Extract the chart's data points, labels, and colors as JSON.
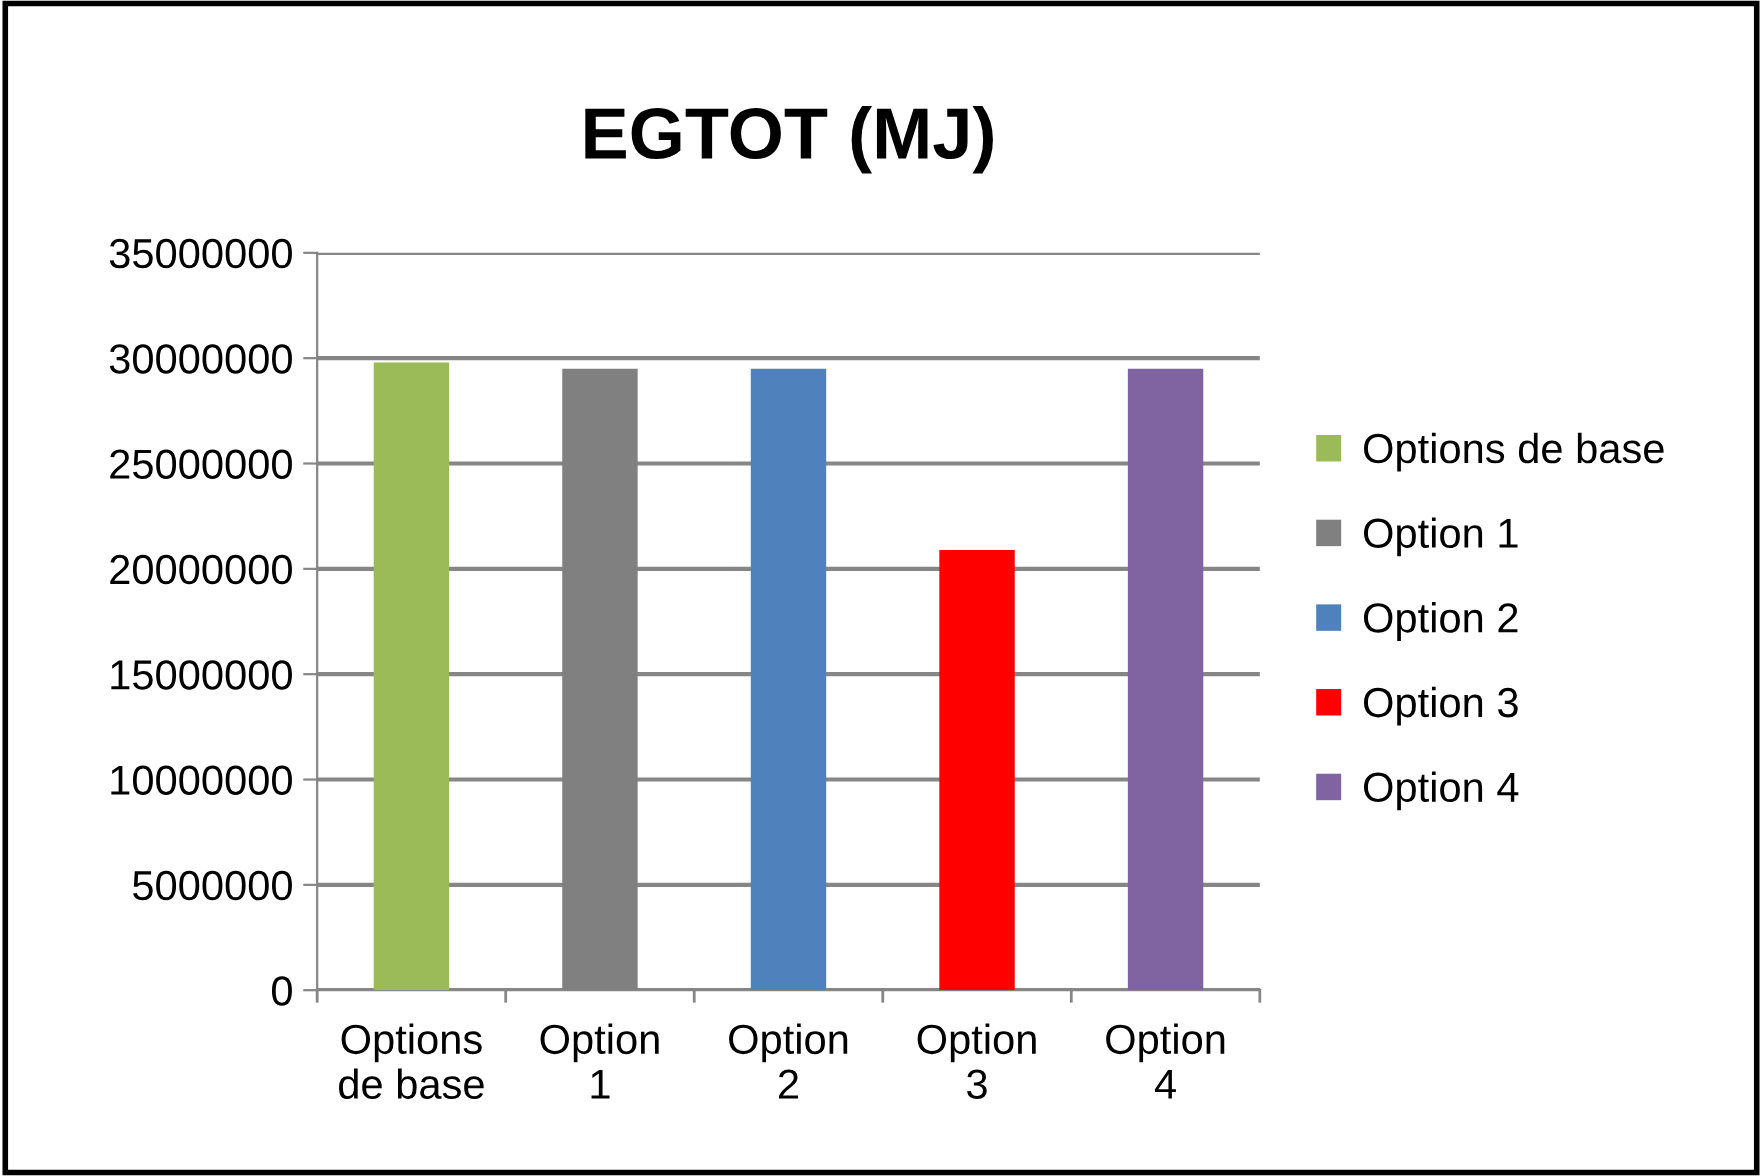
{
  "chart_data": {
    "type": "bar",
    "title": "EGTOT (MJ)",
    "categories": [
      "Options de base",
      "Option 1",
      "Option 2",
      "Option 3",
      "Option 4"
    ],
    "series": [
      {
        "name": "Options de base",
        "color": "#9bbb59",
        "values": [
          29800000,
          null,
          null,
          null,
          null
        ]
      },
      {
        "name": "Option 1",
        "color": "#808080",
        "values": [
          null,
          29500000,
          null,
          null,
          null
        ]
      },
      {
        "name": "Option 2",
        "color": "#4f81bd",
        "values": [
          null,
          null,
          29500000,
          null,
          null
        ]
      },
      {
        "name": "Option 3",
        "color": "#ff0000",
        "values": [
          null,
          null,
          null,
          20900000,
          null
        ]
      },
      {
        "name": "Option 4",
        "color": "#8064a2",
        "values": [
          null,
          null,
          null,
          null,
          29500000
        ]
      }
    ],
    "ylim": [
      0,
      35000000
    ],
    "yticks": [
      0,
      5000000,
      10000000,
      15000000,
      20000000,
      25000000,
      30000000,
      35000000
    ],
    "grid": "y",
    "legend": "right"
  }
}
